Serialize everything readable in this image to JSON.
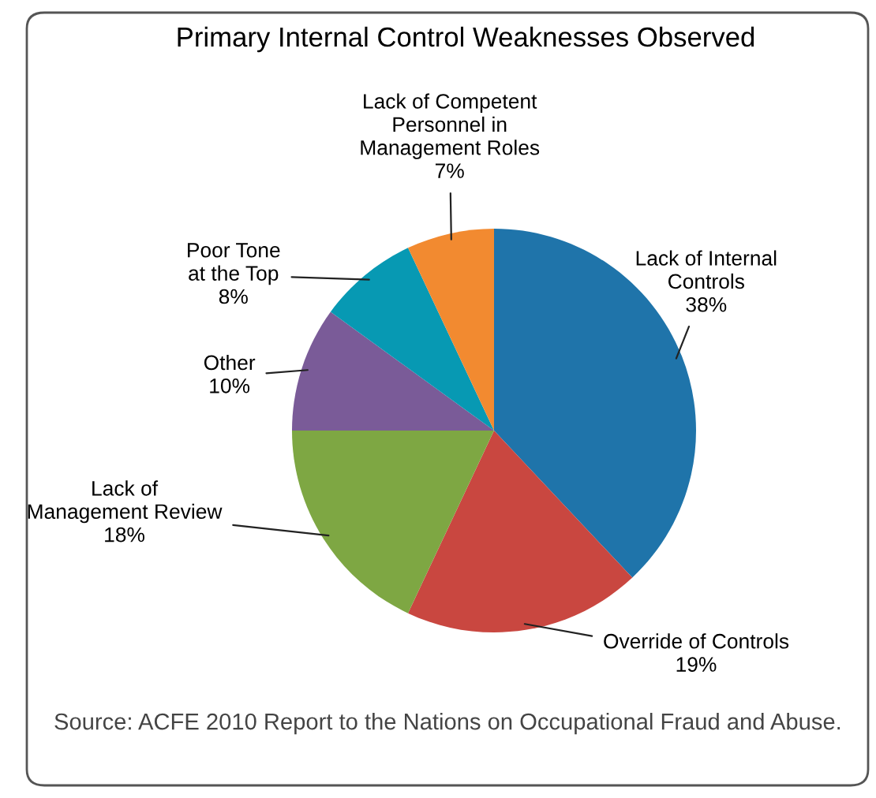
{
  "chart_data": {
    "type": "pie",
    "title": "Primary Internal Control Weaknesses Observed",
    "categories": [
      "Lack of Internal\nControls",
      "Override of Controls",
      "Lack of\nManagement Review",
      "Other",
      "Poor Tone\nat the Top",
      "Lack of Competent\nPersonnel in\nManagement Roles"
    ],
    "values": [
      38,
      19,
      18,
      10,
      8,
      7
    ],
    "value_labels": [
      "38%",
      "19%",
      "18%",
      "10%",
      "8%",
      "7%"
    ],
    "colors": [
      "#1f74aa",
      "#c94740",
      "#7ea743",
      "#7a5b98",
      "#0799b3",
      "#f28a30"
    ],
    "annotations": [
      "Source: ACFE 2010 Report to the Nations on Occupational Fraud and Abuse."
    ]
  }
}
